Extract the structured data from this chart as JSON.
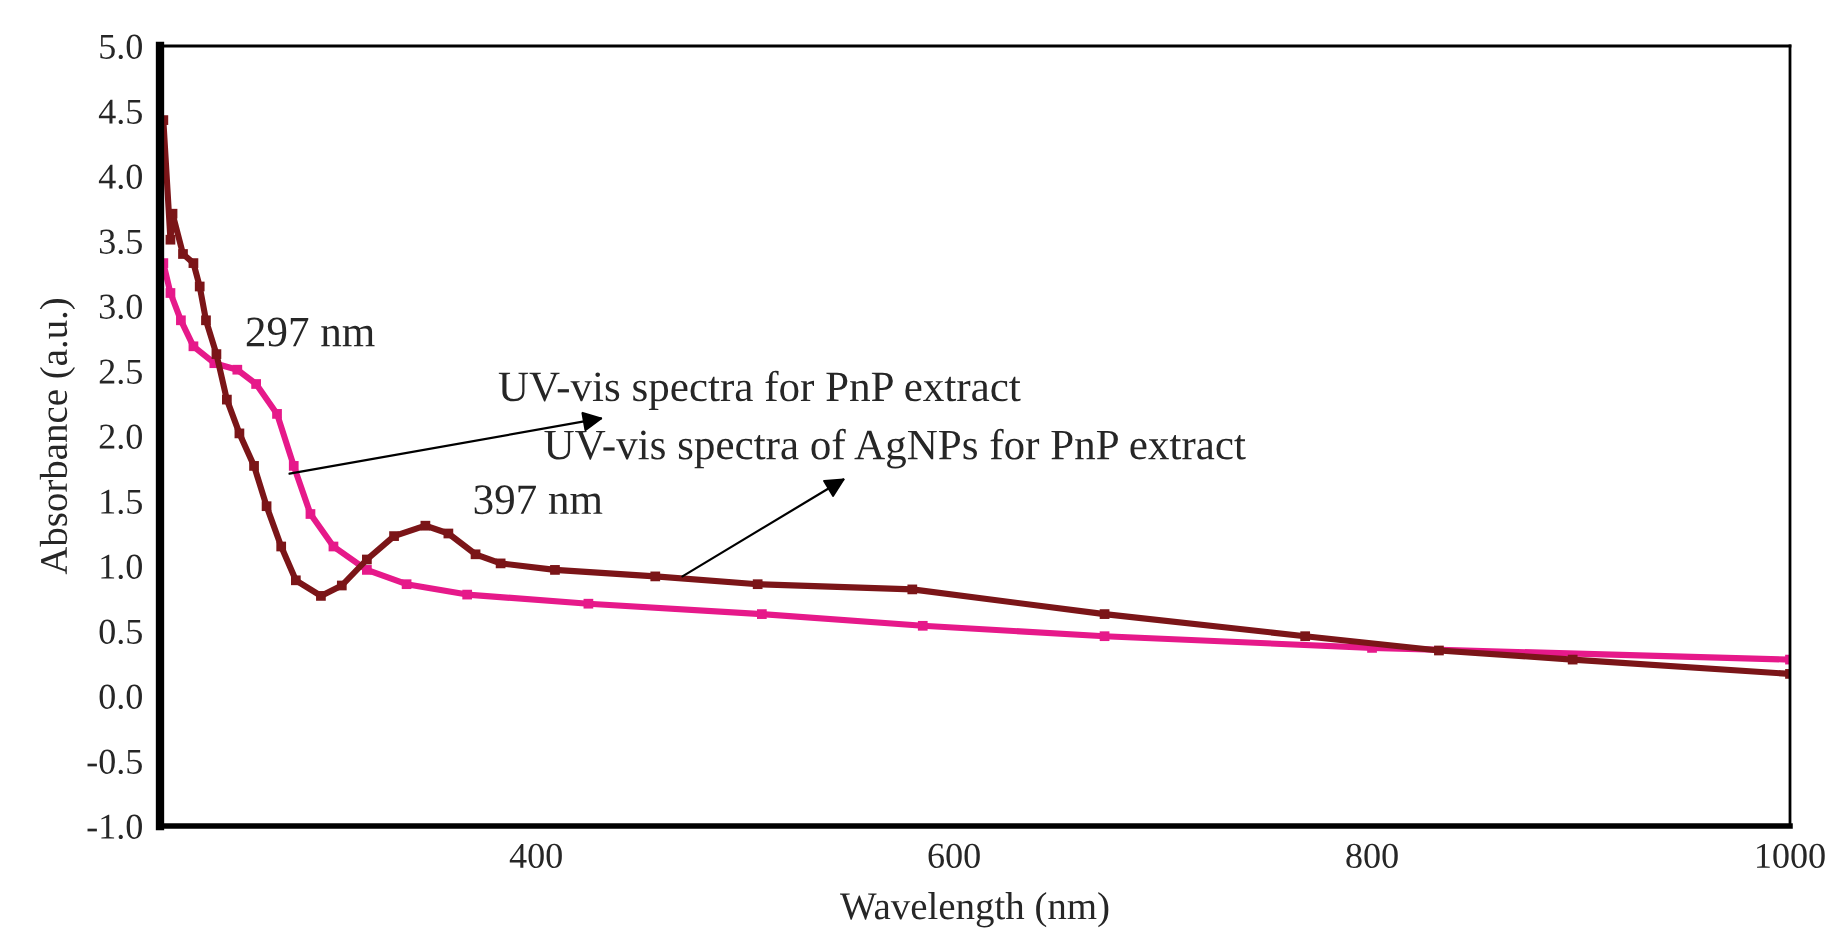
{
  "chart_data": {
    "type": "line",
    "xlabel": "Wavelength (nm)",
    "ylabel": "Absorbance (a.u.)",
    "xlim": [
      220,
      1000
    ],
    "xticks": [
      400,
      600,
      800,
      1000
    ],
    "ylim": [
      -1.0,
      5.0
    ],
    "yticks": [
      {
        "value": -1.0,
        "label": "-1.0"
      },
      {
        "value": -0.5,
        "label": "-0.5"
      },
      {
        "value": 0.0,
        "label": "0.0"
      },
      {
        "value": 0.5,
        "label": "0.5"
      },
      {
        "value": 1.0,
        "label": "1.0"
      },
      {
        "value": 1.5,
        "label": "1.5"
      },
      {
        "value": 2.0,
        "label": "2.0"
      },
      {
        "value": 2.5,
        "label": "2.5"
      },
      {
        "value": 3.0,
        "label": "3.0"
      },
      {
        "value": 3.5,
        "label": "3.5"
      },
      {
        "value": 4.0,
        "label": "4.0"
      },
      {
        "value": 4.5,
        "label": "4.5"
      },
      {
        "value": 5.0,
        "label": "5.0"
      }
    ],
    "grid": false,
    "legend": false,
    "marker": "square",
    "line_style": "solid",
    "series": [
      {
        "color": "#e6198a",
        "x": [
          221.6,
          225,
          230,
          236,
          246,
          257,
          266,
          276,
          284,
          292,
          303,
          319,
          338,
          367,
          425,
          508,
          585,
          672,
          800,
          1000
        ],
        "values": [
          3.33,
          3.1,
          2.89,
          2.69,
          2.56,
          2.51,
          2.4,
          2.17,
          1.77,
          1.4,
          1.15,
          0.97,
          0.86,
          0.78,
          0.71,
          0.63,
          0.54,
          0.46,
          0.37,
          0.28
        ]
      },
      {
        "color": "#7b1518",
        "x": [
          221.6,
          225,
          226,
          231,
          236,
          239,
          242,
          247,
          252,
          258,
          265,
          271,
          278,
          285,
          297,
          307,
          319,
          332,
          347,
          358,
          371,
          383,
          409,
          457,
          506,
          580,
          672,
          768,
          832,
          896,
          1000
        ],
        "values": [
          4.43,
          3.51,
          3.71,
          3.4,
          3.33,
          3.15,
          2.89,
          2.63,
          2.28,
          2.02,
          1.77,
          1.46,
          1.15,
          0.89,
          0.77,
          0.85,
          1.05,
          1.23,
          1.31,
          1.25,
          1.09,
          1.02,
          0.97,
          0.92,
          0.86,
          0.82,
          0.63,
          0.46,
          0.35,
          0.28,
          0.17
        ]
      }
    ],
    "annotations": [
      {
        "text": "297 nm",
        "x": 250,
        "y": 2.6
      },
      {
        "text": "397 nm",
        "x": 347,
        "y": 1.31
      },
      {
        "text": "UV-vis spectra for PnP extract",
        "x": 282,
        "y": 1.71
      },
      {
        "text": "UV-vis spectra of AgNPs for PnP extract",
        "x": 470,
        "y": 0.92
      }
    ]
  }
}
